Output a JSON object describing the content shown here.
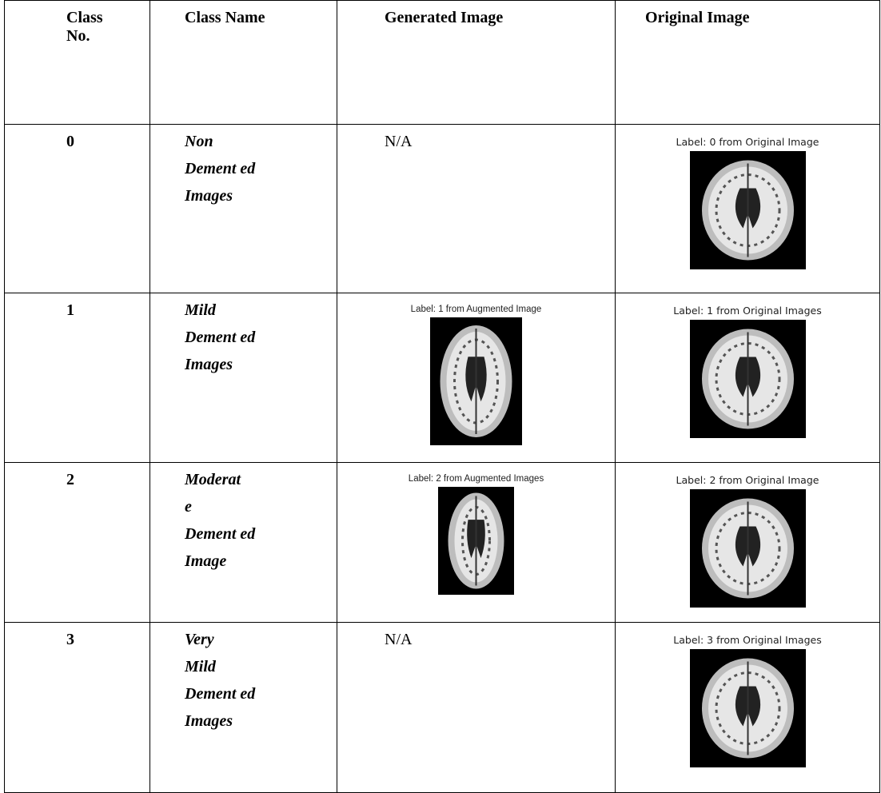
{
  "table": {
    "header": [
      "Class No.",
      "Class Name",
      "Generated Image",
      "Original Image"
    ],
    "rows": [
      {
        "class_no": "0",
        "class_name": [
          "Non",
          "Dement ed",
          "Images"
        ],
        "generated": "N/A",
        "original": "Label: 0 from Original Image"
      },
      {
        "class_no": "1",
        "class_name": [
          "Mild",
          "Dement ed",
          "Images"
        ],
        "generated": {
          "caption": "Label: 1 from Augmented Image"
        },
        "original": "Label: 1 from Original Images"
      },
      {
        "class_no": "2",
        "class_name": [
          "Moderat",
          "e",
          "Dement ed",
          "Image"
        ],
        "generated": {
          "caption": "Label: 2 from Augmented Images"
        },
        "original": "Label: 2 from Original Image"
      },
      {
        "class_no": "3",
        "class_name": [
          "Very",
          "Mild",
          "Dement ed",
          "Images"
        ],
        "generated": "N/A",
        "original": "Label: 3 from Original Images"
      }
    ]
  }
}
